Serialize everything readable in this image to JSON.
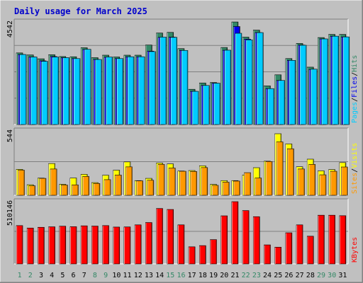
{
  "chart_data": {
    "type": "bar",
    "title": "Daily usage for March 2025",
    "categories": [
      "1",
      "2",
      "3",
      "4",
      "5",
      "6",
      "7",
      "8",
      "9",
      "10",
      "11",
      "12",
      "13",
      "14",
      "15",
      "16",
      "17",
      "18",
      "19",
      "20",
      "21",
      "22",
      "23",
      "24",
      "25",
      "26",
      "27",
      "28",
      "29",
      "30",
      "31"
    ],
    "weekend_days": [
      "1",
      "2",
      "8",
      "9",
      "15",
      "16",
      "22",
      "23",
      "29",
      "30"
    ],
    "panels": [
      {
        "id": "hits-panel",
        "axis_max_label": "4542",
        "ylim": [
          0,
          4542
        ],
        "legend": [
          "Hits",
          "Files",
          "Pages"
        ],
        "legend_separator": "/",
        "series": [
          {
            "name": "Hits",
            "color": "#338866",
            "values": [
              3170,
              3080,
              2910,
              3090,
              3010,
              3000,
              3400,
              2960,
              3070,
              2990,
              3070,
              3070,
              3520,
              4050,
              4080,
              3360,
              1560,
              1840,
              1860,
              3410,
              4540,
              3870,
              4180,
              1710,
              2200,
              2920,
              3590,
              2540,
              3850,
              3990,
              3990
            ]
          },
          {
            "name": "Files",
            "color": "#0000ee",
            "values": [
              3100,
              2990,
              2820,
              3010,
              2960,
              2920,
              3320,
              2880,
              2980,
              2920,
              3000,
              3000,
              3250,
              3860,
              3870,
              3280,
              1470,
              1730,
              1830,
              3290,
              4340,
              3780,
              4070,
              1590,
              1950,
              2840,
              3520,
              2440,
              3790,
              3910,
              3880
            ]
          },
          {
            "name": "Pages",
            "color": "#00ccff",
            "values": [
              3100,
              2990,
              2800,
              2990,
              2960,
              2920,
              3330,
              2880,
              2990,
              2920,
              3000,
              3000,
              3230,
              3870,
              3860,
              3280,
              1470,
              1730,
              1830,
              3290,
              4040,
              3750,
              4070,
              1590,
              1950,
              2840,
              3510,
              2450,
              3790,
              3910,
              3880
            ]
          }
        ]
      },
      {
        "id": "visits-panel",
        "axis_max_label": "544",
        "ylim": [
          0,
          544
        ],
        "legend": [
          "Visits",
          "Sites"
        ],
        "legend_separator": "/",
        "series": [
          {
            "name": "Visits",
            "color": "#ffff00",
            "values": [
              219,
              89,
              145,
              268,
              93,
              146,
              177,
              107,
              169,
              212,
              282,
              124,
              143,
              273,
              265,
              205,
              209,
              249,
              92,
              124,
              124,
              171,
              233,
              288,
              520,
              434,
              241,
              305,
              206,
              217,
              276
            ]
          },
          {
            "name": "Sites",
            "color": "#ff9900",
            "values": [
              212,
              80,
              143,
              222,
              87,
              88,
              159,
              100,
              132,
              171,
              240,
              122,
              127,
              261,
              230,
              203,
              201,
              234,
              84,
              111,
              120,
              191,
              146,
              285,
              451,
              393,
              222,
              261,
              173,
              203,
              239
            ]
          }
        ]
      },
      {
        "id": "kbytes-panel",
        "axis_max_label": "510146",
        "ylim": [
          0,
          510146
        ],
        "legend": [
          "KBytes"
        ],
        "legend_separator": "/",
        "series": [
          {
            "name": "KBytes",
            "color": "#ff0000",
            "values": [
              314000,
              294000,
              300000,
              304000,
              309000,
              305000,
              312000,
              310000,
              314000,
              302000,
              303000,
              320000,
              339000,
              454000,
              446000,
              320000,
              140000,
              150000,
              199000,
              394000,
              510000,
              437000,
              387000,
              156000,
              137000,
              255000,
              320000,
              227000,
              399000,
              399000,
              395000
            ]
          }
        ]
      }
    ]
  }
}
